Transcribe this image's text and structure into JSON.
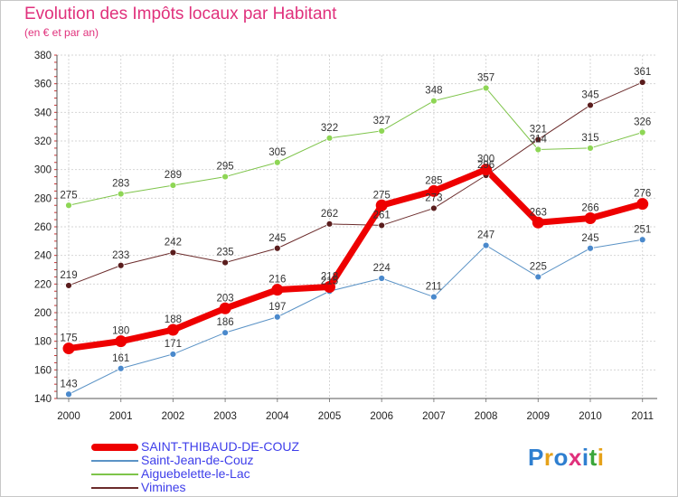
{
  "header": {
    "title": "Evolution des Impôts locaux par Habitant",
    "subtitle": "(en € et par an)"
  },
  "colors": {
    "title": "#e0317c",
    "legend_text": "#3e3eea"
  },
  "logo": {
    "text": "Proxiti",
    "letters": [
      {
        "ch": "P",
        "color": "#2f7fd0"
      },
      {
        "ch": "r",
        "color": "#e6a21a"
      },
      {
        "ch": "o",
        "color": "#2f7fd0"
      },
      {
        "ch": "x",
        "color": "#e0317c"
      },
      {
        "ch": "i",
        "color": "#2f7fd0"
      },
      {
        "ch": "t",
        "color": "#3aa63a"
      },
      {
        "ch": "i",
        "color": "#e6a21a"
      }
    ]
  },
  "chart_data": {
    "type": "line",
    "title": "Evolution des Impôts locaux par Habitant",
    "subtitle": "(en € et par an)",
    "xlabel": "",
    "ylabel": "",
    "categories": [
      "2000",
      "2001",
      "2002",
      "2003",
      "2004",
      "2005",
      "2006",
      "2007",
      "2008",
      "2009",
      "2010",
      "2011"
    ],
    "ylim": [
      140,
      380
    ],
    "yticks": [
      140,
      160,
      180,
      200,
      220,
      240,
      260,
      280,
      300,
      320,
      340,
      360,
      380
    ],
    "grid": true,
    "legend_position": "bottom-left",
    "series": [
      {
        "name": "Aiguebelette-le-Lac",
        "color": "#7ec44a",
        "marker": "#8ed655",
        "width": 1,
        "radius": 3.5,
        "values": [
          275,
          283,
          289,
          295,
          305,
          322,
          327,
          348,
          357,
          314,
          315,
          326
        ]
      },
      {
        "name": "Vimines",
        "color": "#6b2b2b",
        "marker": "#5a1d1d",
        "width": 1,
        "radius": 3.5,
        "values": [
          219,
          233,
          242,
          235,
          245,
          262,
          261,
          273,
          296,
          321,
          345,
          361
        ]
      },
      {
        "name": "Saint-Jean-de-Couz",
        "color": "#5b93c6",
        "marker": "#4a89cc",
        "width": 1,
        "radius": 3.5,
        "values": [
          143,
          161,
          171,
          186,
          197,
          215,
          224,
          211,
          247,
          225,
          245,
          251
        ]
      },
      {
        "name": "SAINT-THIBAUD-DE-COUZ",
        "color": "#ee0000",
        "marker": "#ee0000",
        "width": 7,
        "radius": 6.5,
        "values": [
          175,
          180,
          188,
          203,
          216,
          218,
          275,
          285,
          300,
          263,
          266,
          276
        ]
      }
    ],
    "legend": [
      "SAINT-THIBAUD-DE-COUZ",
      "Saint-Jean-de-Couz",
      "Aiguebelette-le-Lac",
      "Vimines"
    ]
  }
}
